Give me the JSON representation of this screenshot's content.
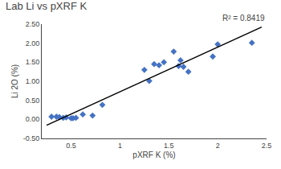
{
  "chart_data": {
    "type": "scatter",
    "title": "Lab Li vs pXRF K",
    "xlabel": "pXRF K (%)",
    "ylabel": "Li 2O (%)",
    "annotations": [
      "R² = 0.8419"
    ],
    "series": [
      {
        "type": "scatter",
        "color": "#4472C4",
        "marker": "diamond",
        "x": [
          0.3,
          0.35,
          0.38,
          0.42,
          0.45,
          0.5,
          0.52,
          0.55,
          0.62,
          0.72,
          0.82,
          1.25,
          1.3,
          1.35,
          1.4,
          1.45,
          1.55,
          1.6,
          1.62,
          1.65,
          1.7,
          1.95,
          2.0,
          2.35
        ],
        "values": [
          0.07,
          0.07,
          0.06,
          0.04,
          0.05,
          0.03,
          0.03,
          0.04,
          0.13,
          0.1,
          0.38,
          1.3,
          1.01,
          1.45,
          1.42,
          1.5,
          1.78,
          1.4,
          1.55,
          1.38,
          1.25,
          1.65,
          1.97,
          2.01
        ]
      },
      {
        "type": "line",
        "color": "#000000",
        "line_style": "solid",
        "x": [
          0.25,
          2.45
        ],
        "values": [
          -0.1545,
          2.4239
        ]
      }
    ],
    "xlim": [
      0.2,
      2.5
    ],
    "ylim": [
      -0.5,
      2.5
    ],
    "xticks": [
      0.5,
      1,
      1.5,
      2,
      2.5
    ],
    "yticks": [
      {
        "value": -0.5,
        "label": "-0.50"
      },
      {
        "value": 0,
        "label": "0.00"
      },
      {
        "value": 0.5,
        "label": "0.50"
      },
      {
        "value": 1,
        "label": "1.00"
      },
      {
        "value": 1.5,
        "label": "1.50"
      },
      {
        "value": 2,
        "label": "2.00"
      },
      {
        "value": 2.5,
        "label": "2.50"
      }
    ],
    "grid": false
  }
}
